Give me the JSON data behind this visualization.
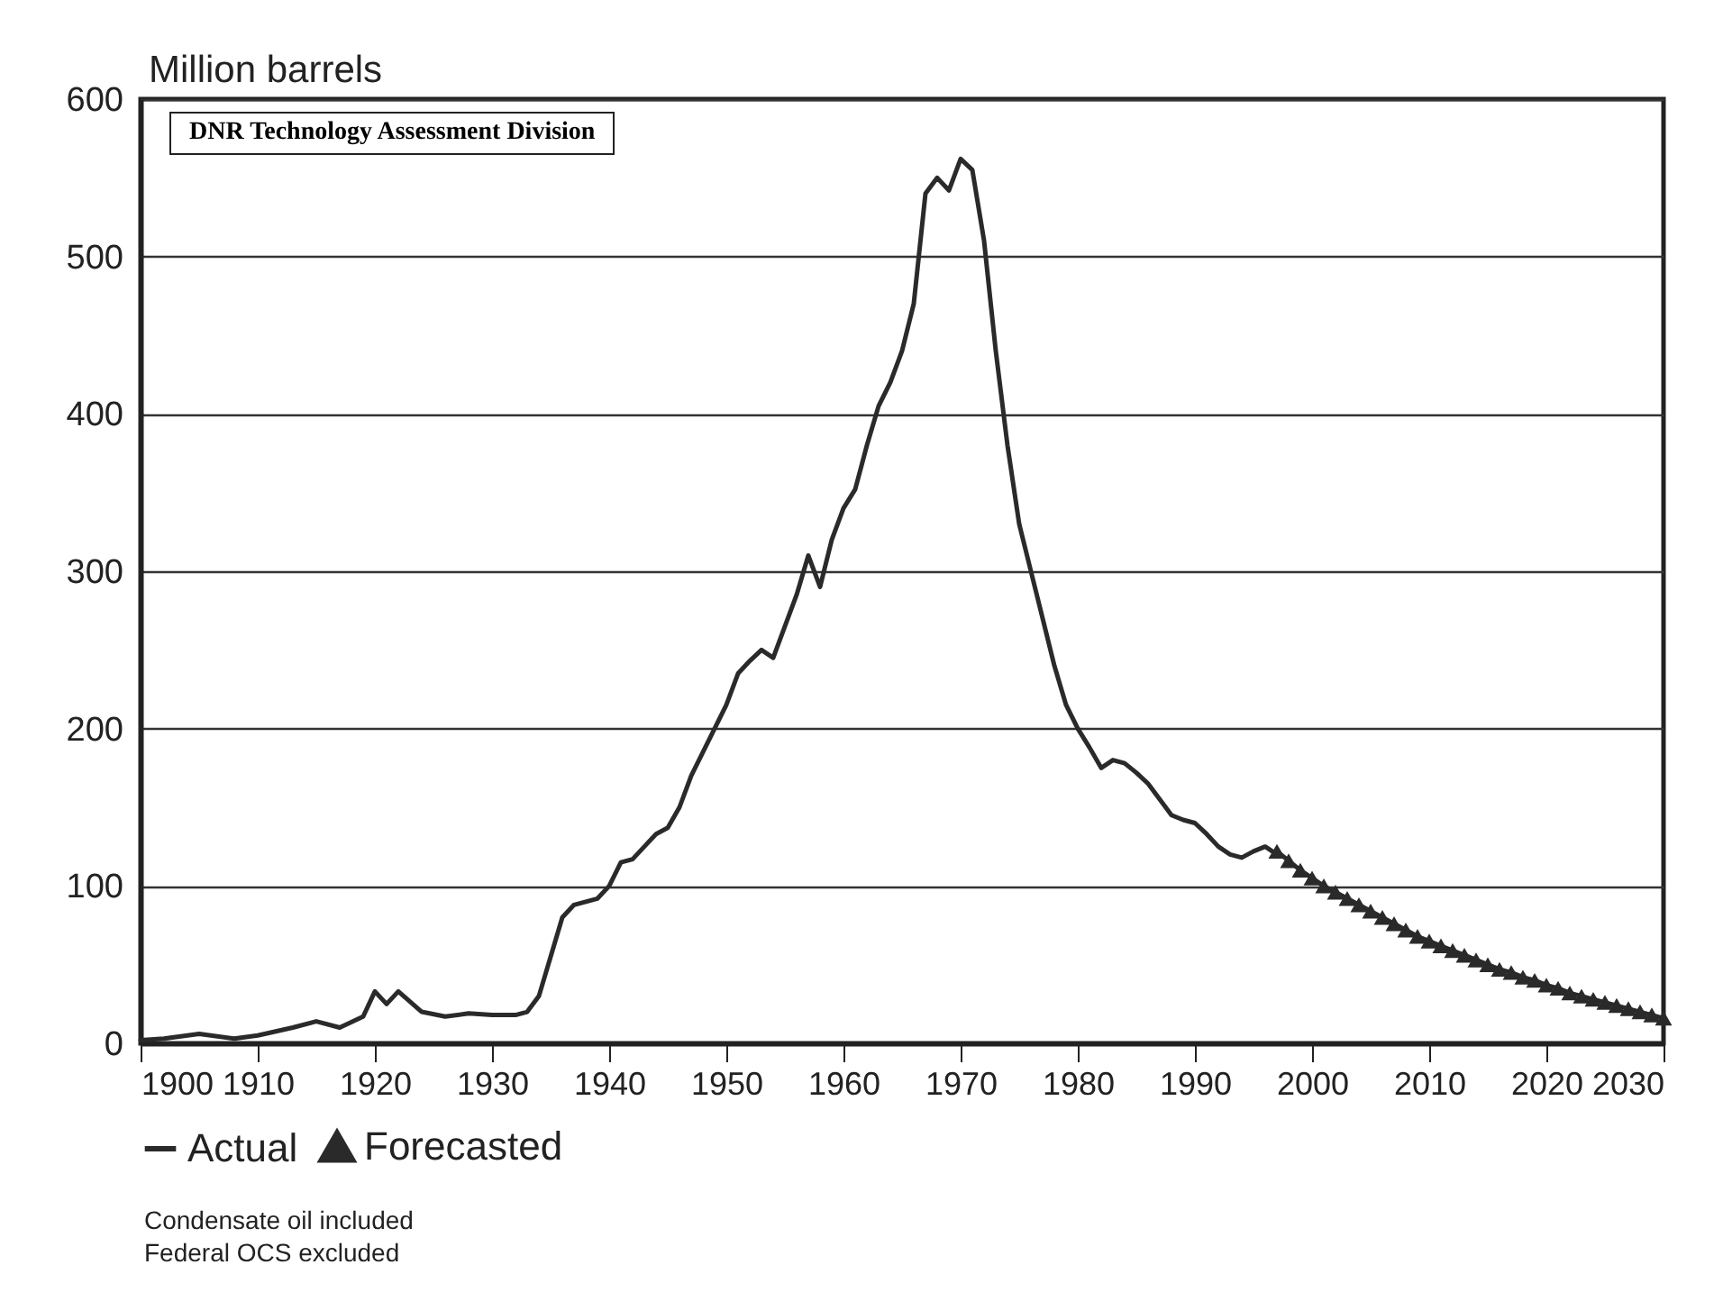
{
  "chart_data": {
    "type": "line",
    "ylabel": "Million barrels",
    "annotations": [
      "DNR Technology Assessment Division",
      "Condensate oil included",
      "Federal OCS excluded"
    ],
    "xlim": [
      1900,
      2030
    ],
    "xticks": [
      1900,
      1910,
      1920,
      1930,
      1940,
      1950,
      1960,
      1970,
      1980,
      1990,
      2000,
      2010,
      2020,
      2030
    ],
    "ylim": [
      0,
      600
    ],
    "yticks": [
      0,
      100,
      200,
      300,
      400,
      500,
      600
    ],
    "grid": "y",
    "legend": "bottom",
    "series": [
      {
        "name": "Actual",
        "color": "#2a2a2a",
        "marker": "none",
        "x": [
          1900,
          1902,
          1905,
          1908,
          1910,
          1913,
          1915,
          1917,
          1919,
          1920,
          1921,
          1922,
          1924,
          1926,
          1928,
          1930,
          1932,
          1933,
          1934,
          1935,
          1936,
          1937,
          1938,
          1939,
          1940,
          1941,
          1942,
          1943,
          1944,
          1945,
          1946,
          1947,
          1948,
          1949,
          1950,
          1951,
          1952,
          1953,
          1954,
          1955,
          1956,
          1957,
          1958,
          1959,
          1960,
          1961,
          1962,
          1963,
          1964,
          1965,
          1966,
          1967,
          1968,
          1969,
          1970,
          1971,
          1972,
          1973,
          1974,
          1975,
          1976,
          1977,
          1978,
          1979,
          1980,
          1981,
          1982,
          1983,
          1984,
          1985,
          1986,
          1987,
          1988,
          1989,
          1990,
          1991,
          1992,
          1993,
          1994,
          1995,
          1996,
          1997
        ],
        "values": [
          2,
          3,
          6,
          3,
          5,
          10,
          14,
          10,
          17,
          33,
          25,
          33,
          20,
          17,
          19,
          18,
          18,
          20,
          30,
          55,
          80,
          88,
          90,
          92,
          100,
          115,
          117,
          125,
          133,
          137,
          150,
          170,
          185,
          200,
          215,
          235,
          243,
          250,
          245,
          265,
          285,
          310,
          290,
          320,
          340,
          352,
          380,
          405,
          420,
          440,
          470,
          540,
          550,
          542,
          562,
          555,
          510,
          440,
          380,
          330,
          300,
          270,
          240,
          215,
          200,
          188,
          175,
          180,
          178,
          172,
          165,
          155,
          145,
          142,
          140,
          133,
          125,
          120,
          118,
          122,
          125,
          120
        ]
      },
      {
        "name": "Forecasted",
        "color": "#2a2a2a",
        "marker": "triangle",
        "x": [
          1997,
          1998,
          1999,
          2000,
          2001,
          2002,
          2003,
          2004,
          2005,
          2006,
          2007,
          2008,
          2009,
          2010,
          2011,
          2012,
          2013,
          2014,
          2015,
          2016,
          2017,
          2018,
          2019,
          2020,
          2021,
          2022,
          2023,
          2024,
          2025,
          2026,
          2027,
          2028,
          2029,
          2030
        ],
        "values": [
          122,
          116,
          110,
          105,
          100,
          96,
          92,
          88,
          84,
          80,
          76,
          72,
          68,
          65,
          62,
          59,
          56,
          53,
          50,
          47,
          45,
          42,
          40,
          37,
          35,
          32,
          30,
          28,
          26,
          24,
          22,
          20,
          18,
          16
        ]
      }
    ]
  }
}
